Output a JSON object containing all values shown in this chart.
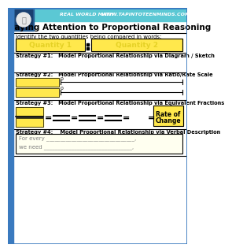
{
  "title": "Paying Attention to Proportional Reasoning",
  "header_left": "REAL WORLD MATH",
  "header_right": "WWW.TAPINTOTEENMINDS.COM",
  "bg_color": "#ffffff",
  "header_bg": "#5bc8d4",
  "yellow": "#FFE84C",
  "dark_yellow": "#E6C800",
  "border_color": "#3a7abf",
  "text_color": "#000000",
  "strategy_label_color": "#000000",
  "rate_box_color": "#FFE84C",
  "verbal_box_color": "#FFFFF0",
  "identify_text": "Identify the two quantities being compared in words:",
  "qty1_label": "Quantity 1",
  "qty2_label": "Quantity 2",
  "s1_text": "Strategy #1:   Model Proportional Relationship via Diagram / Sketch",
  "s2_text": "Strategy #2:   Model Proportional Relationship via Ratio/Rate Scale",
  "s3_text": "Strategy #3:   Model Proportional Relationship via Equivalent Fractions",
  "s4_text": "Strategy #4:    Model Proportional Relationship via Verbal Description",
  "rate_line1": "Rate of",
  "rate_line2": "Change",
  "verbal_line1": "For every ________________________________,",
  "verbal_line2": "we need ________________________________,"
}
